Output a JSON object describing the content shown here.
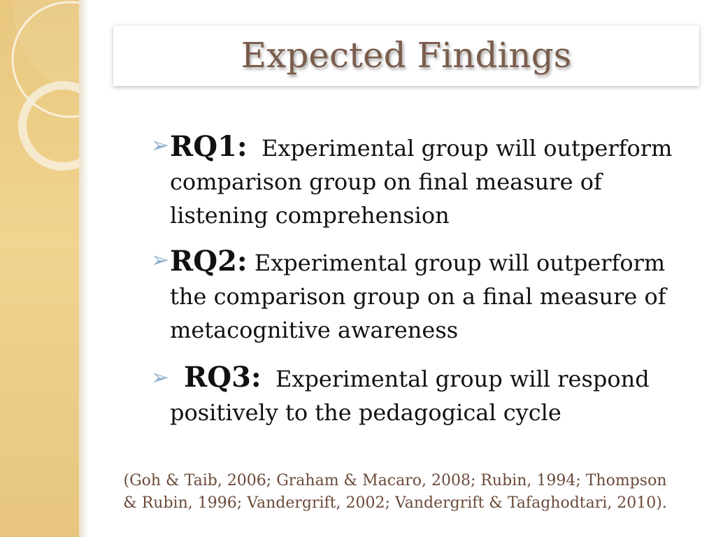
{
  "slide": {
    "title": "Expected Findings",
    "bullets": [
      {
        "label": "RQ1:",
        "text": "Experimental group will outperform comparison group on final measure of listening comprehension"
      },
      {
        "label": "RQ2:",
        "text": "Experimental group will outperform the comparison group on a final measure of metacognitive awareness"
      },
      {
        "label": "RQ3:",
        "text": "Experimental group will respond positively to the pedagogical cycle"
      }
    ],
    "citation": "(Goh & Taib, 2006; Graham & Macaro, 2008; Rubin, 1994; Thompson & Rubin, 1996; Vandergrift, 2002; Vandergrift & Tafaghodtari, 2010).",
    "colors": {
      "title": "#7a5d4c",
      "accent_bar": "#e9c77f",
      "bullet_arrow": "#8fb0cf",
      "citation": "#6b4a3a"
    }
  }
}
